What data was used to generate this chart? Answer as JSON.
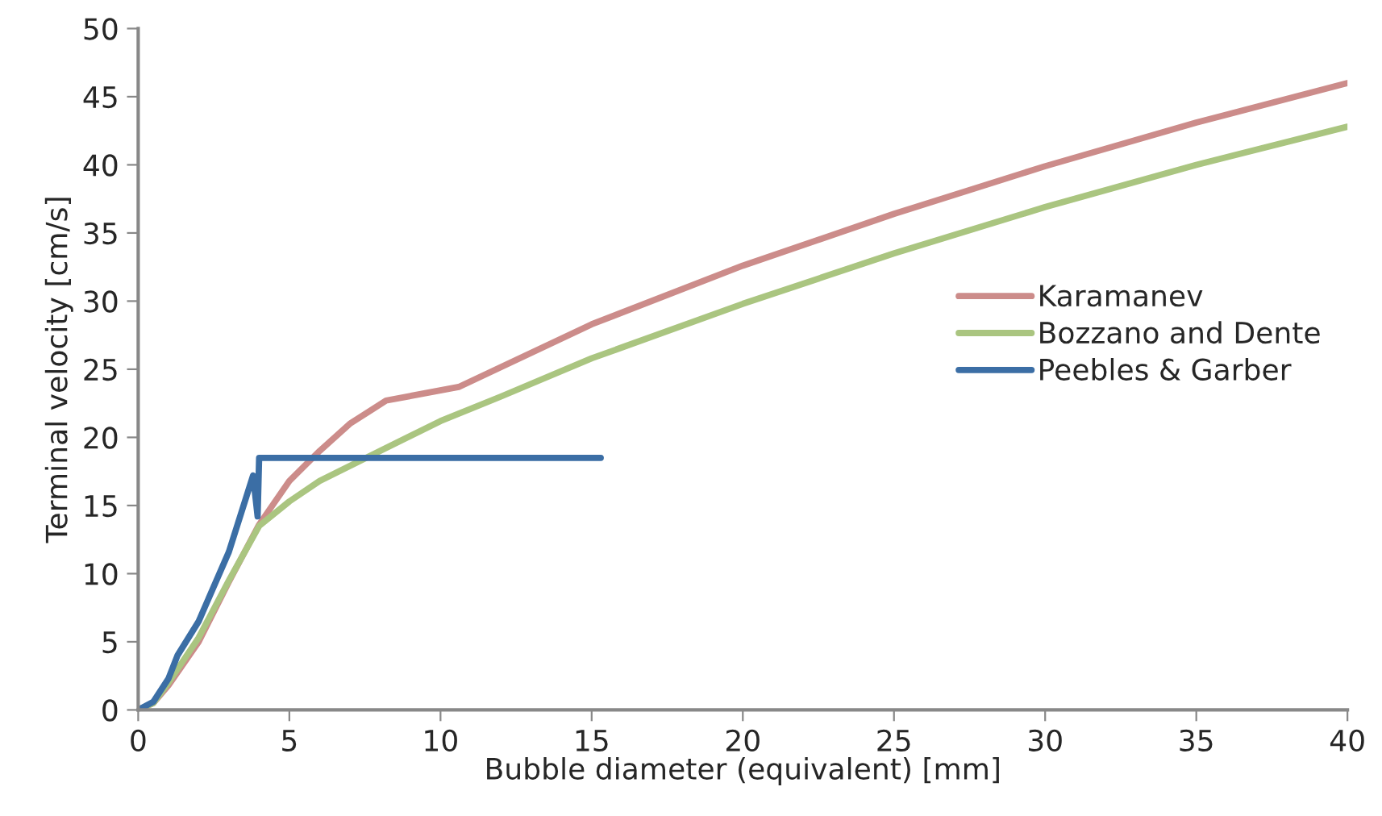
{
  "chart_data": {
    "type": "line",
    "xlabel": "Bubble diameter (equivalent) [mm]",
    "ylabel": "Terminal velocity [cm/s]",
    "xlim": [
      0,
      40
    ],
    "xticks": [
      0,
      5,
      10,
      15,
      20,
      25,
      30,
      35,
      40
    ],
    "ylim": [
      0,
      50
    ],
    "yticks": [
      0,
      5,
      10,
      15,
      20,
      25,
      30,
      35,
      40,
      45,
      50
    ],
    "grid": false,
    "legend": "right",
    "marker": "none",
    "line_style": "solid",
    "series": [
      {
        "name": "Karamanev",
        "color": "#cc8c8a",
        "x": [
          0,
          0.5,
          1,
          2,
          3,
          4,
          5,
          6,
          7,
          8.2,
          10.6,
          15,
          20,
          25,
          30,
          35,
          40
        ],
        "values": [
          0,
          0.5,
          1.8,
          5,
          9.4,
          13.6,
          16.8,
          19,
          21,
          22.7,
          23.7,
          28.3,
          32.6,
          36.4,
          39.9,
          43.1,
          46
        ]
      },
      {
        "name": "Bozzano and Dente",
        "color": "#aac580",
        "x": [
          0,
          0.5,
          1,
          2,
          3,
          4,
          5,
          6,
          8,
          10,
          12,
          15,
          20,
          25,
          30,
          35,
          40
        ],
        "values": [
          0,
          0.5,
          2,
          5.3,
          9.5,
          13.5,
          15.3,
          16.8,
          19,
          21.2,
          23,
          25.8,
          29.8,
          33.5,
          36.9,
          40,
          42.8
        ]
      },
      {
        "name": "Peebles & Garber",
        "color": "#3b6ea5",
        "x": [
          0,
          0.5,
          1,
          1.3,
          2,
          3,
          3.8,
          3.95,
          4.0,
          15.3
        ],
        "values": [
          0,
          0.6,
          2.3,
          4,
          6.5,
          11.6,
          17.2,
          14.2,
          18.5,
          18.5
        ]
      }
    ]
  }
}
